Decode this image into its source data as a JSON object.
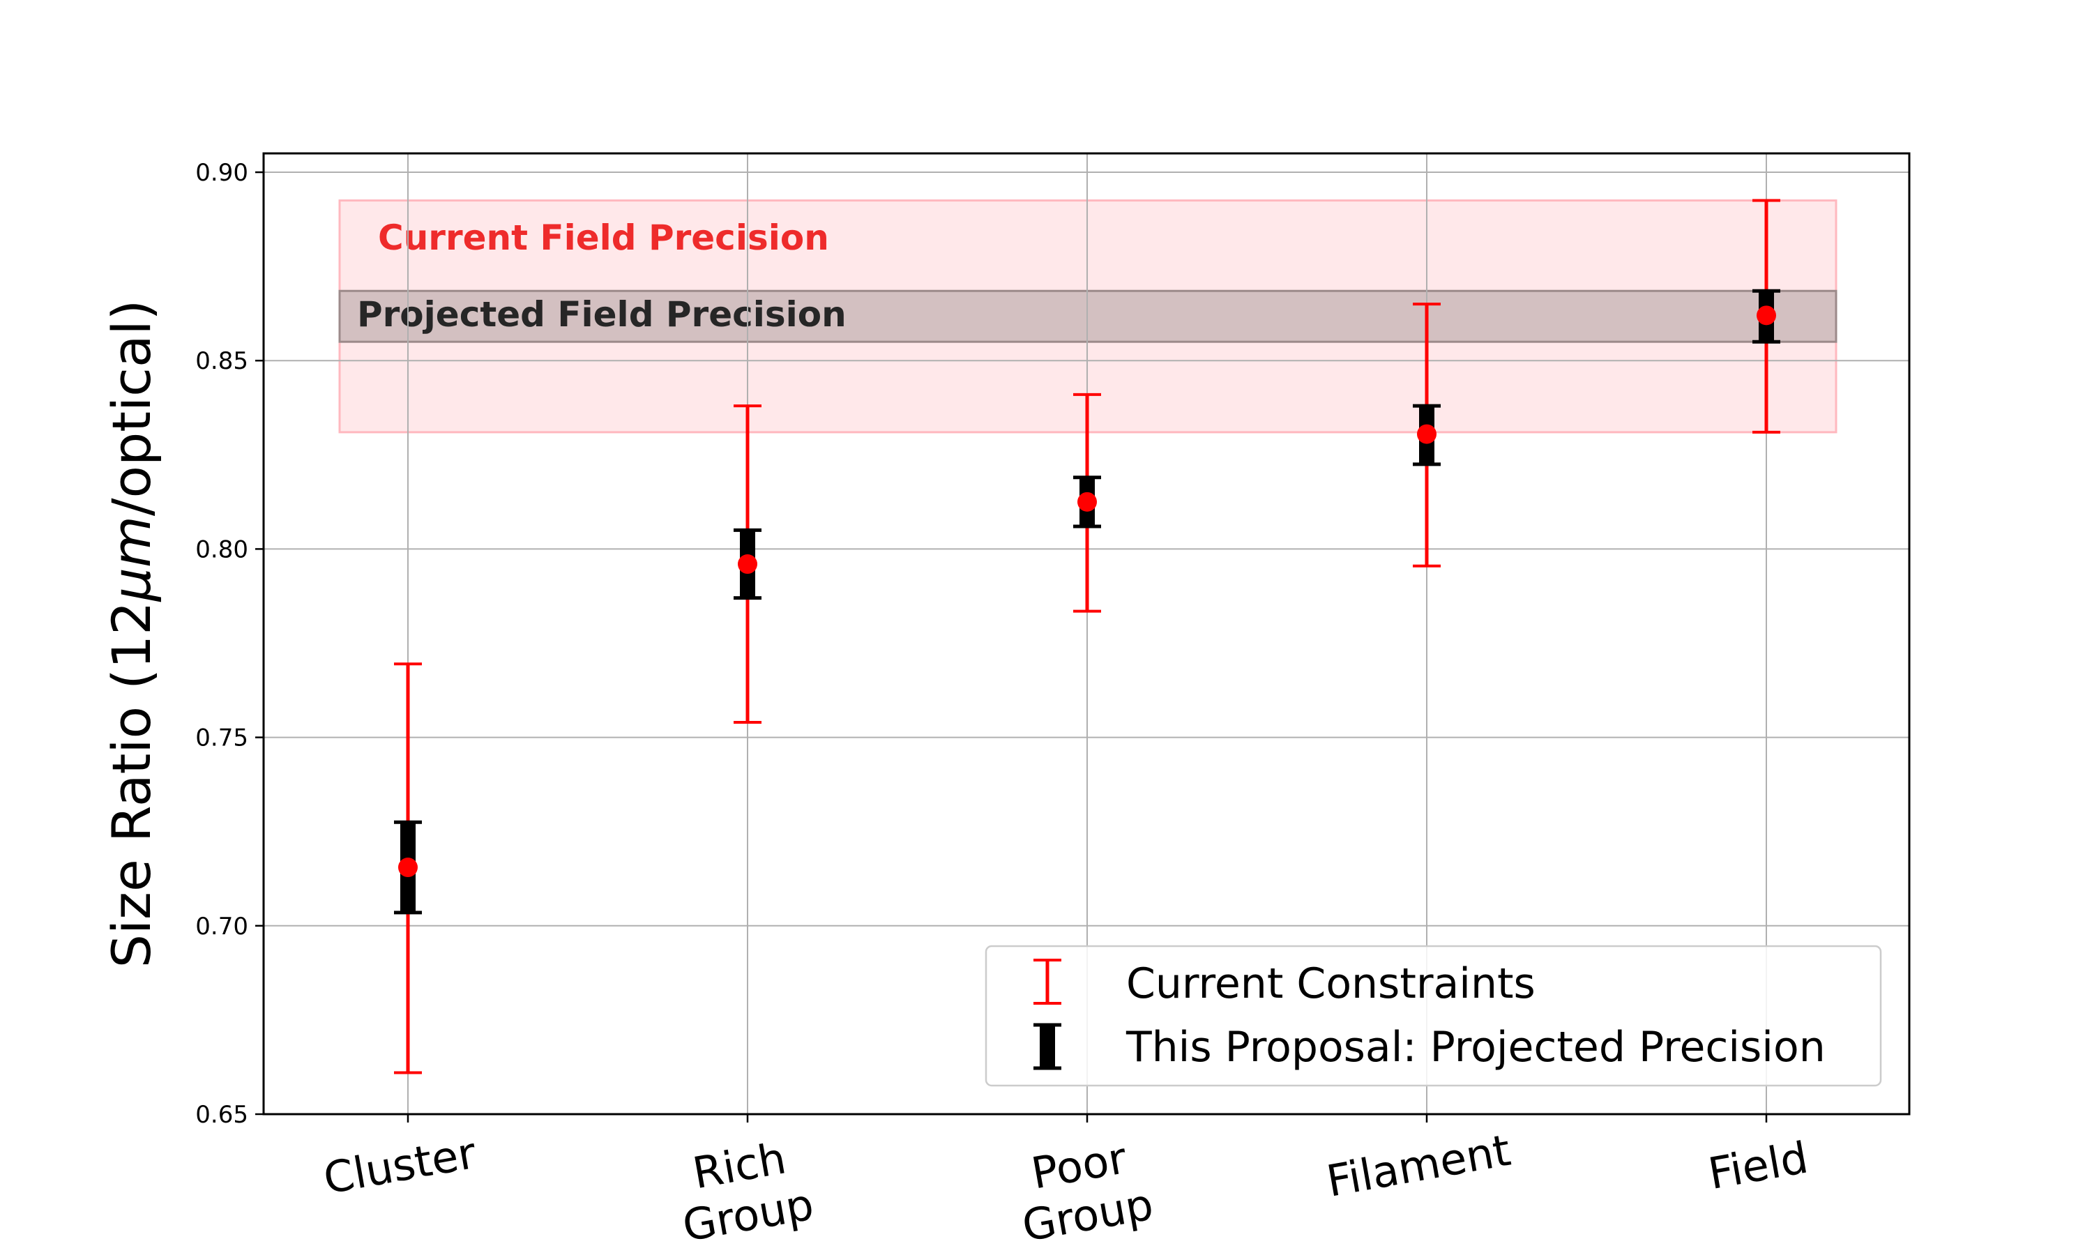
{
  "chart_data": {
    "type": "errorbar",
    "ylabel_prefix": "Size Ratio (12",
    "ylabel_unit": "μm",
    "ylabel_suffix": "/optical)",
    "ylim": [
      0.65,
      0.905
    ],
    "yticks": [
      "0.65",
      "0.70",
      "0.75",
      "0.80",
      "0.85",
      "0.90"
    ],
    "grid": true,
    "categories": [
      {
        "lines": [
          "Cluster"
        ]
      },
      {
        "lines": [
          "Rich",
          "Group"
        ]
      },
      {
        "lines": [
          "Poor",
          "Group"
        ]
      },
      {
        "lines": [
          "Filament"
        ]
      },
      {
        "lines": [
          "Field"
        ]
      }
    ],
    "values": [
      0.7155,
      0.796,
      0.8125,
      0.8305,
      0.862
    ],
    "current_constraints": [
      {
        "low": 0.661,
        "high": 0.7695
      },
      {
        "low": 0.754,
        "high": 0.838
      },
      {
        "low": 0.7835,
        "high": 0.841
      },
      {
        "low": 0.7955,
        "high": 0.865
      },
      {
        "low": 0.831,
        "high": 0.8925
      }
    ],
    "projected_precision": [
      {
        "low": 0.7035,
        "high": 0.7275
      },
      {
        "low": 0.787,
        "high": 0.805
      },
      {
        "low": 0.806,
        "high": 0.819
      },
      {
        "low": 0.8225,
        "high": 0.838
      },
      {
        "low": 0.855,
        "high": 0.8685
      }
    ],
    "bands": [
      {
        "label": "Current Field Precision",
        "low": 0.831,
        "high": 0.8925,
        "color": "#ffd9dc"
      },
      {
        "label": "Projected Field Precision",
        "low": 0.855,
        "high": 0.8685,
        "color": "#c4b3b3"
      }
    ],
    "legend": {
      "placement": "lower-right",
      "entries": [
        "Current Constraints",
        "This Proposal: Projected Precision"
      ]
    },
    "colors": {
      "current": "#ff0000",
      "projected": "#000000",
      "point": "#ff0000"
    }
  }
}
